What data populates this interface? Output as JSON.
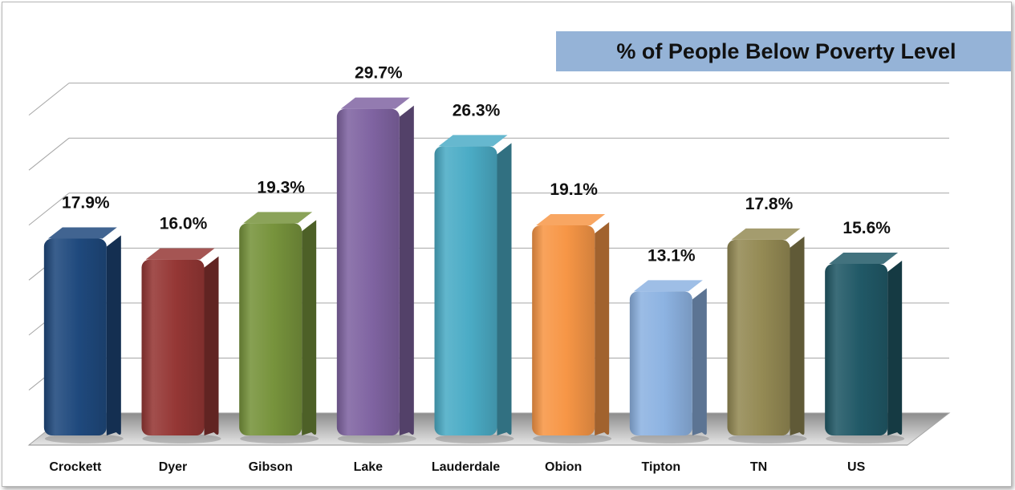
{
  "chart_data": {
    "type": "bar",
    "title": "% of People Below Poverty Level",
    "categories": [
      "Crockett",
      "Dyer",
      "Gibson",
      "Lake",
      "Lauderdale",
      "Obion",
      "Tipton",
      "TN",
      "US"
    ],
    "values": [
      17.9,
      16.0,
      19.3,
      29.7,
      26.3,
      19.1,
      13.1,
      17.8,
      15.6
    ],
    "value_labels": [
      "17.9%",
      "16.0%",
      "19.3%",
      "29.7%",
      "26.3%",
      "19.1%",
      "13.1%",
      "17.8%",
      "15.6%"
    ],
    "colors": [
      "#1f497d",
      "#953735",
      "#77933c",
      "#8064a2",
      "#4bacc6",
      "#f79646",
      "#8db3e2",
      "#948a54",
      "#215967"
    ],
    "ylim": [
      0,
      35
    ],
    "grid": true,
    "xlabel": "",
    "ylabel": ""
  }
}
